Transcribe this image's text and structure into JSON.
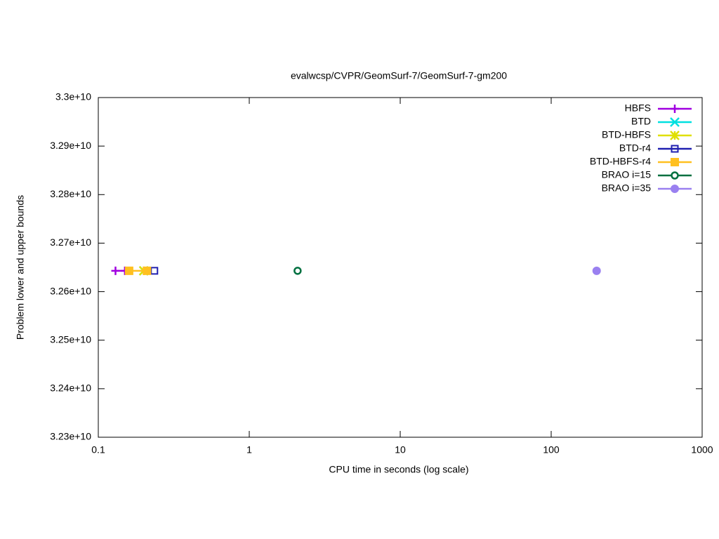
{
  "chart_data": {
    "type": "line",
    "title": "evalwcsp/CVPR/GeomSurf-7/GeomSurf-7-gm200",
    "x_label": "CPU time in seconds (log scale)",
    "y_label": "Problem lower and upper bounds",
    "xscale": "log",
    "xlim": [
      0.1,
      1000
    ],
    "xticks": [
      0.1,
      1,
      10,
      100,
      1000
    ],
    "ylim": [
      32300000000,
      33000000000
    ],
    "yticks": [
      {
        "value": 32300000000,
        "label": "3.23e+10"
      },
      {
        "value": 32400000000,
        "label": "3.24e+10"
      },
      {
        "value": 32500000000,
        "label": "3.25e+10"
      },
      {
        "value": 32600000000,
        "label": "3.26e+10"
      },
      {
        "value": 32700000000,
        "label": "3.27e+10"
      },
      {
        "value": 32800000000,
        "label": "3.28e+10"
      },
      {
        "value": 32900000000,
        "label": "3.29e+10"
      },
      {
        "value": 33000000000,
        "label": "3.3e+10"
      }
    ],
    "legend": "top-right",
    "series": [
      {
        "name": "HBFS",
        "color": "#a000e0",
        "marker": "plus",
        "x": [
          0.13,
          0.15
        ],
        "values": [
          32643000000,
          32643000000
        ]
      },
      {
        "name": "BTD",
        "color": "#00e0e0",
        "marker": "cross",
        "x": [
          0.2
        ],
        "values": [
          32643000000
        ]
      },
      {
        "name": "BTD-HBFS",
        "color": "#e0e000",
        "marker": "star",
        "x": [
          0.2
        ],
        "values": [
          32643000000
        ]
      },
      {
        "name": "BTD-r4",
        "color": "#2020b0",
        "marker": "open-square",
        "x": [
          0.235
        ],
        "values": [
          32643000000
        ]
      },
      {
        "name": "BTD-HBFS-r4",
        "color": "#ffc020",
        "marker": "square",
        "x": [
          0.16,
          0.21
        ],
        "values": [
          32643000000,
          32643000000
        ]
      },
      {
        "name": "BRAO i=15",
        "color": "#007040",
        "marker": "dot-circle",
        "x": [
          2.09
        ],
        "values": [
          32643000000
        ]
      },
      {
        "name": "BRAO i=35",
        "color": "#9a80f0",
        "marker": "circle",
        "x": [
          200
        ],
        "values": [
          32643000000
        ]
      }
    ]
  }
}
